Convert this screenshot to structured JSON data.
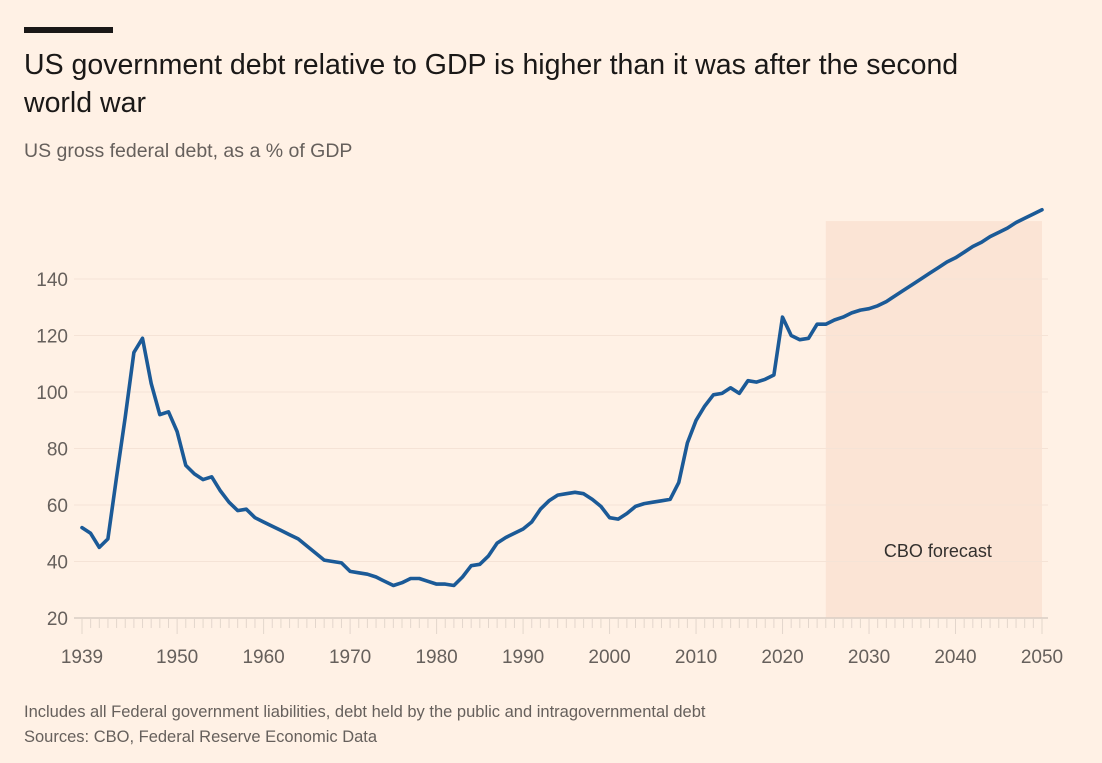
{
  "header": {
    "title": "US government debt relative to GDP is higher than it was after the second world war",
    "subtitle": "US gross federal debt, as a % of GDP"
  },
  "footer": {
    "note": "Includes all Federal government liabilities, debt held by the public and intragovernmental debt",
    "sources": "Sources: CBO, Federal Reserve Economic Data"
  },
  "chart_data": {
    "type": "line",
    "title": "US government debt relative to GDP is higher than it was after the second world war",
    "subtitle": "US gross federal debt, as a % of GDP",
    "xlim": [
      1939,
      2050
    ],
    "ylim": [
      20,
      160
    ],
    "x_ticks": [
      "1939",
      "1950",
      "1960",
      "1970",
      "1980",
      "1990",
      "2000",
      "2010",
      "2020",
      "2030",
      "2040",
      "2050"
    ],
    "y_ticks": [
      "20",
      "40",
      "60",
      "80",
      "100",
      "120",
      "140"
    ],
    "grid": true,
    "line_color": "#1b5a97",
    "forecast_shading": {
      "label": "CBO forecast",
      "from": 2025,
      "to": 2050,
      "color": "#fbe4d5"
    },
    "series": [
      {
        "x": [
          1939,
          1940,
          1941,
          1942,
          1943,
          1944,
          1945,
          1946,
          1947,
          1948,
          1949,
          1950,
          1951,
          1952,
          1953,
          1954,
          1955,
          1956,
          1957,
          1958,
          1959,
          1960,
          1961,
          1962,
          1963,
          1964,
          1965,
          1966,
          1967,
          1968,
          1969,
          1970,
          1971,
          1972,
          1973,
          1974,
          1975,
          1976,
          1977,
          1978,
          1979,
          1980,
          1981,
          1982,
          1983,
          1984,
          1985,
          1986,
          1987,
          1988,
          1989,
          1990,
          1991,
          1992,
          1993,
          1994,
          1995,
          1996,
          1997,
          1998,
          1999,
          2000,
          2001,
          2002,
          2003,
          2004,
          2005,
          2006,
          2007,
          2008,
          2009,
          2010,
          2011,
          2012,
          2013,
          2014,
          2015,
          2016,
          2017,
          2018,
          2019,
          2020,
          2021,
          2022,
          2023,
          2024,
          2025,
          2026,
          2027,
          2028,
          2029,
          2030,
          2031,
          2032,
          2033,
          2034,
          2035,
          2036,
          2037,
          2038,
          2039,
          2040,
          2041,
          2042,
          2043,
          2044,
          2045,
          2046,
          2047,
          2048,
          2049,
          2050
        ],
        "y": [
          52,
          50,
          45,
          48,
          70,
          91,
          114,
          119,
          103,
          92,
          93,
          86,
          74,
          71,
          69,
          70,
          65,
          61,
          58,
          58.5,
          55.5,
          54,
          52.5,
          51,
          49.5,
          48,
          45.5,
          43,
          40.5,
          40,
          39.5,
          36.5,
          36,
          35.5,
          34.5,
          33,
          31.5,
          32.5,
          34,
          34,
          33,
          32,
          32,
          31.5,
          34.5,
          38.5,
          39,
          42,
          46.5,
          48.5,
          50,
          51.5,
          54,
          58.5,
          61.5,
          63.5,
          64,
          64.5,
          64,
          62,
          59.5,
          55.5,
          55,
          57,
          59.5,
          60.5,
          61,
          61.5,
          62,
          68,
          82,
          90,
          95,
          99,
          99.5,
          101.5,
          99.5,
          104,
          103.5,
          104.5,
          106,
          126.5,
          120,
          118.5,
          119,
          124,
          124,
          125.5,
          126.5,
          128,
          129,
          129.5,
          130.5,
          132,
          134,
          136,
          138,
          140,
          142,
          144,
          146,
          147.5,
          149.5,
          151.5,
          153,
          155,
          156.5,
          158,
          160,
          161.5,
          163,
          164.5
        ]
      }
    ]
  }
}
